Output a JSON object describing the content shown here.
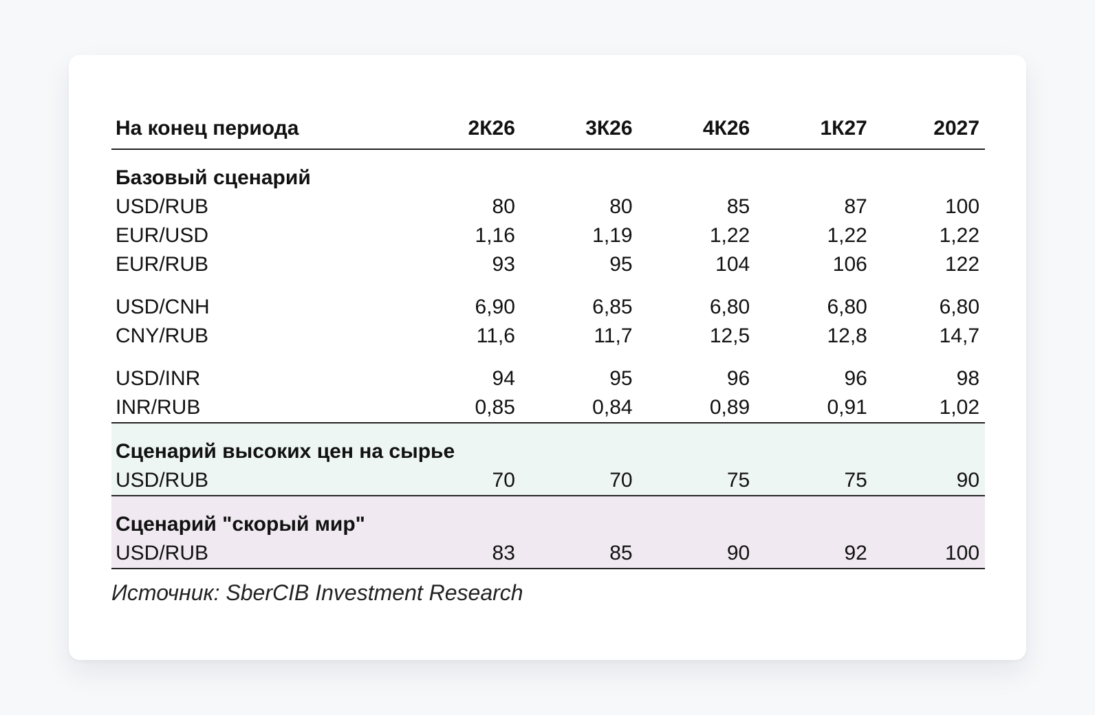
{
  "header": {
    "label": "На конец периода",
    "columns": [
      "2К26",
      "3К26",
      "4К26",
      "1К27",
      "2027"
    ]
  },
  "base": {
    "title": "Базовый сценарий",
    "groups": [
      [
        {
          "label": "USD/RUB",
          "values": [
            "80",
            "80",
            "85",
            "87",
            "100"
          ]
        },
        {
          "label": "EUR/USD",
          "values": [
            "1,16",
            "1,19",
            "1,22",
            "1,22",
            "1,22"
          ]
        },
        {
          "label": "EUR/RUB",
          "values": [
            "93",
            "95",
            "104",
            "106",
            "122"
          ]
        }
      ],
      [
        {
          "label": "USD/CNH",
          "values": [
            "6,90",
            "6,85",
            "6,80",
            "6,80",
            "6,80"
          ]
        },
        {
          "label": "CNY/RUB",
          "values": [
            "11,6",
            "11,7",
            "12,5",
            "12,8",
            "14,7"
          ]
        }
      ],
      [
        {
          "label": "USD/INR",
          "values": [
            "94",
            "95",
            "96",
            "96",
            "98"
          ]
        },
        {
          "label": "INR/RUB",
          "values": [
            "0,85",
            "0,84",
            "0,89",
            "0,91",
            "1,02"
          ]
        }
      ]
    ]
  },
  "high_commodity": {
    "title": "Сценарий высоких цен на сырье",
    "rows": [
      {
        "label": "USD/RUB",
        "values": [
          "70",
          "70",
          "75",
          "75",
          "90"
        ]
      }
    ]
  },
  "fast_peace": {
    "title": "Сценарий \"скорый мир\"",
    "rows": [
      {
        "label": "USD/RUB",
        "values": [
          "83",
          "85",
          "90",
          "92",
          "100"
        ]
      }
    ]
  },
  "source": "Источник: SberCIB Investment Research",
  "colors": {
    "green_band": "#eef6f3",
    "purple_band": "#f0e9f1"
  }
}
